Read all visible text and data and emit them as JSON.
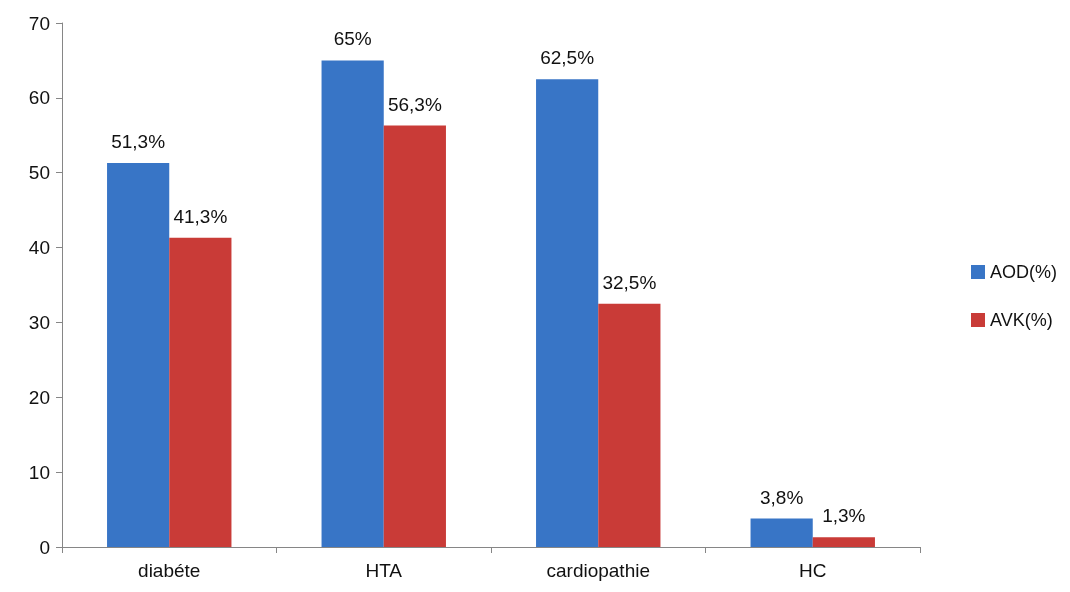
{
  "chart_data": {
    "type": "bar",
    "categories": [
      "diabéte",
      "HTA",
      "cardiopathie",
      "HC"
    ],
    "series": [
      {
        "name": "AOD(%)",
        "color": "#3875c6",
        "values": [
          51.3,
          65,
          62.5,
          3.8
        ],
        "value_labels": [
          "51,3%",
          "65%",
          "62,5%",
          "3,8%"
        ]
      },
      {
        "name": "AVK(%)",
        "color": "#c93b37",
        "values": [
          41.3,
          56.3,
          32.5,
          1.3
        ],
        "value_labels": [
          "41,3%",
          "56,3%",
          "32,5%",
          "1,3%"
        ]
      }
    ],
    "ylim": [
      0,
      70
    ],
    "yticks": [
      0,
      10,
      20,
      30,
      40,
      50,
      60,
      70
    ],
    "grid": false,
    "legend": "right"
  }
}
